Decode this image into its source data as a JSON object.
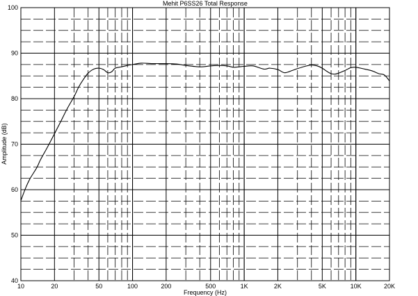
{
  "chart_data": {
    "type": "line",
    "title": "Mehit P6SS26 Total Response",
    "xlabel": "Frequency (Hz)",
    "ylabel": "Amplitude (dB)",
    "x_scale": "log",
    "xlim": [
      10,
      20000
    ],
    "ylim": [
      40,
      100
    ],
    "grid": true,
    "legend": "none",
    "x_ticks": [
      {
        "value": 10,
        "label": "10"
      },
      {
        "value": 20,
        "label": "20"
      },
      {
        "value": 50,
        "label": "50"
      },
      {
        "value": 100,
        "label": "100"
      },
      {
        "value": 200,
        "label": "200"
      },
      {
        "value": 500,
        "label": "500"
      },
      {
        "value": 1000,
        "label": "1K"
      },
      {
        "value": 2000,
        "label": "2K"
      },
      {
        "value": 5000,
        "label": "5K"
      },
      {
        "value": 10000,
        "label": "10K"
      },
      {
        "value": 20000,
        "label": "20K"
      }
    ],
    "y_ticks": [
      {
        "value": 40,
        "label": "40"
      },
      {
        "value": 50,
        "label": "50"
      },
      {
        "value": 60,
        "label": "60"
      },
      {
        "value": 70,
        "label": "70"
      },
      {
        "value": 80,
        "label": "80"
      },
      {
        "value": 90,
        "label": "90"
      },
      {
        "value": 100,
        "label": "100"
      }
    ],
    "series": [
      {
        "color": "#000000",
        "x": [
          10,
          11,
          12,
          13,
          14,
          15,
          17,
          20,
          23,
          26,
          30,
          33,
          36,
          40,
          45,
          50,
          55,
          60,
          65,
          70,
          80,
          90,
          100,
          120,
          150,
          200,
          250,
          300,
          400,
          500,
          600,
          700,
          800,
          900,
          1000,
          1200,
          1500,
          1700,
          2000,
          2300,
          2700,
          3000,
          3500,
          4000,
          4500,
          5000,
          5500,
          6000,
          6500,
          7000,
          8000,
          9000,
          10000,
          12000,
          14000,
          16000,
          18000,
          20000
        ],
        "y": [
          57.6,
          60.3,
          62.3,
          63.7,
          65.0,
          66.6,
          69.0,
          72.3,
          75.2,
          77.8,
          80.5,
          82.6,
          84.1,
          85.6,
          86.5,
          86.7,
          86.4,
          85.7,
          85.9,
          86.7,
          87.0,
          87.3,
          87.5,
          87.8,
          87.7,
          87.7,
          87.6,
          87.3,
          87.0,
          87.2,
          87.3,
          87.2,
          86.9,
          87.0,
          87.1,
          87.2,
          86.5,
          86.7,
          86.4,
          85.7,
          86.2,
          86.6,
          87.1,
          87.4,
          87.2,
          86.7,
          86.0,
          85.5,
          85.4,
          85.6,
          86.2,
          86.8,
          86.9,
          86.5,
          86.1,
          85.5,
          85.2,
          83.9
        ]
      }
    ]
  }
}
